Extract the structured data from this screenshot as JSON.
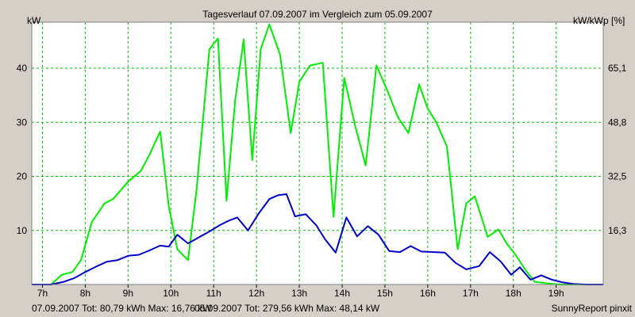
{
  "chart_data": {
    "type": "line",
    "title": "Tagesverlauf 07.09.2007 im Vergleich zum 05.09.2007",
    "ylabel_left": "kW",
    "ylabel_right": "kW/kWp [%]",
    "xlim": [
      6.75,
      20.1
    ],
    "ylim": [
      0,
      48.5
    ],
    "x_ticks": [
      "7h",
      "8h",
      "9h",
      "10h",
      "11h",
      "12h",
      "13h",
      "14h",
      "15h",
      "16h",
      "17h",
      "18h",
      "19h"
    ],
    "x_tick_values": [
      7,
      8,
      9,
      10,
      11,
      12,
      13,
      14,
      15,
      16,
      17,
      18,
      19
    ],
    "y_ticks_left": [
      "10",
      "20",
      "30",
      "40"
    ],
    "y_tick_values_left": [
      10,
      20,
      30,
      40
    ],
    "y_ticks_right": [
      "16,3",
      "32,5",
      "48,8",
      "65,1"
    ],
    "y_tick_values_right": [
      10,
      20,
      30,
      40
    ],
    "grid": true,
    "plot_background": "#ffffff",
    "grid_color": "#00c000",
    "series": [
      {
        "name": "07.09.2007 Tot: 80,79 kWh Max: 16,76 kW",
        "color": "#0000cc",
        "x": [
          6.75,
          7.2,
          7.5,
          7.75,
          8.0,
          8.25,
          8.5,
          8.75,
          9.0,
          9.25,
          9.5,
          9.75,
          9.95,
          10.15,
          10.4,
          10.65,
          10.9,
          11.15,
          11.35,
          11.55,
          11.8,
          12.05,
          12.3,
          12.5,
          12.7,
          12.9,
          13.15,
          13.4,
          13.6,
          13.85,
          14.1,
          14.35,
          14.6,
          14.85,
          15.1,
          15.35,
          15.6,
          15.85,
          16.15,
          16.4,
          16.65,
          16.9,
          17.2,
          17.45,
          17.7,
          17.95,
          18.15,
          18.4,
          18.65,
          18.9,
          19.15,
          19.4,
          19.7,
          20.1
        ],
        "y": [
          0,
          0,
          0.5,
          1.2,
          2.3,
          3.3,
          4.2,
          4.5,
          5.3,
          5.5,
          6.3,
          7.2,
          7.0,
          9.2,
          7.6,
          8.7,
          9.8,
          11.0,
          11.8,
          12.4,
          10.0,
          13.1,
          15.8,
          16.5,
          16.7,
          12.6,
          13.0,
          10.9,
          8.4,
          5.9,
          12.4,
          8.9,
          10.8,
          9.2,
          6.2,
          6.0,
          7.1,
          6.1,
          6.0,
          5.9,
          4.0,
          2.8,
          3.4,
          6.0,
          4.3,
          1.8,
          3.2,
          0.9,
          1.7,
          0.9,
          0.4,
          0.1,
          0,
          0
        ]
      },
      {
        "name": "05.09.2007 Tot: 279,56 kWh Max: 48,14 kW",
        "color": "#00ee00",
        "x": [
          6.75,
          7.2,
          7.45,
          7.7,
          7.9,
          8.15,
          8.45,
          8.65,
          9.0,
          9.3,
          9.5,
          9.75,
          9.95,
          10.15,
          10.4,
          10.6,
          10.9,
          11.1,
          11.3,
          11.5,
          11.7,
          11.9,
          12.1,
          12.3,
          12.55,
          12.8,
          13.0,
          13.25,
          13.55,
          13.8,
          14.05,
          14.3,
          14.55,
          14.8,
          15.05,
          15.3,
          15.55,
          15.8,
          16.0,
          16.2,
          16.45,
          16.7,
          16.9,
          17.1,
          17.4,
          17.65,
          17.85,
          18.05,
          18.3,
          18.5,
          18.8,
          19.1,
          19.4,
          19.7,
          20.1
        ],
        "y": [
          0,
          0,
          1.8,
          2.3,
          4.5,
          11.5,
          15.0,
          15.8,
          19.0,
          21.0,
          24.0,
          28.3,
          14.5,
          6.5,
          4.5,
          17.5,
          43.5,
          45.5,
          15.5,
          34.0,
          45.3,
          23.0,
          43.5,
          48.1,
          42.5,
          28.0,
          37.5,
          40.5,
          41.0,
          12.5,
          38.2,
          29.5,
          22.0,
          40.5,
          36.0,
          31.0,
          28.0,
          37.0,
          32.5,
          30.0,
          25.5,
          6.5,
          15.0,
          16.3,
          8.8,
          10.2,
          7.5,
          5.5,
          2.5,
          0.5,
          0.2,
          0,
          0,
          0,
          0
        ]
      }
    ],
    "footer_right": "SunnyReport pinxit"
  }
}
